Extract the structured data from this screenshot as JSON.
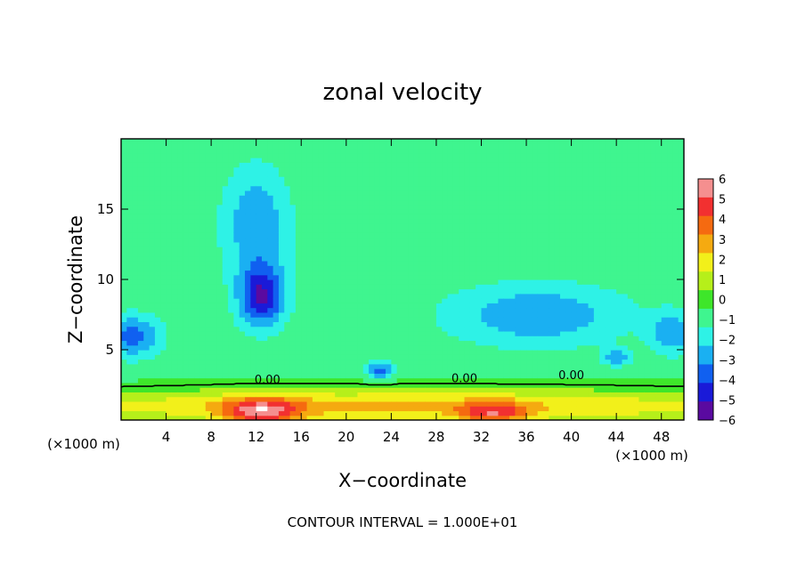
{
  "chart_data": {
    "type": "heatmap",
    "title": "zonal velocity",
    "xlabel": "X−coordinate",
    "ylabel": "Z−coordinate",
    "x_unit_left": "(×1000 m)",
    "x_unit_right": "(×1000 m)",
    "footer": "CONTOUR INTERVAL = 1.000E+01",
    "xlim": [
      0,
      50
    ],
    "ylim": [
      0,
      20
    ],
    "x_ticks": [
      4,
      8,
      12,
      16,
      20,
      24,
      28,
      32,
      36,
      40,
      44,
      48
    ],
    "x_tick_labels": [
      "4",
      "8",
      "12",
      "16",
      "20",
      "24",
      "28",
      "32",
      "36",
      "40",
      "44",
      "48"
    ],
    "y_ticks": [
      5,
      10,
      15
    ],
    "y_tick_labels": [
      "5",
      "10",
      "15"
    ],
    "colorbar": {
      "levels": [
        6,
        5,
        4,
        3,
        2,
        1,
        0,
        -1,
        -2,
        -3,
        -4,
        -5,
        -6
      ],
      "labels": [
        "6",
        "5",
        "4",
        "3",
        "2",
        "1",
        "0",
        "−1",
        "−2",
        "−3",
        "−4",
        "−5",
        "−6"
      ],
      "colors": [
        "#f58f8f",
        "#f23030",
        "#f56a10",
        "#f5aa10",
        "#f2f01a",
        "#b6ef1a",
        "#3ee62a",
        "#3ff58f",
        "#2ef2e6",
        "#1ab0f2",
        "#1060f0",
        "#1a1ad8",
        "#5a0aa0"
      ]
    },
    "contour_labels": [
      "0.00",
      "0.00",
      "0.00"
    ],
    "background_value": -0.8,
    "features": [
      {
        "name": "upper-jet-core",
        "x": 12,
        "z": 14,
        "sx": 3,
        "sz": 4,
        "value": -2.6
      },
      {
        "name": "strong-negative-core",
        "x": 12.5,
        "z": 8.8,
        "sx": 2.1,
        "sz": 2.2,
        "value": -4.5
      },
      {
        "name": "right-negative-region",
        "x": 37,
        "z": 7.5,
        "sx": 8,
        "sz": 2.2,
        "value": -2.6
      },
      {
        "name": "left-negative-region",
        "x": 1,
        "z": 6,
        "sx": 2.5,
        "sz": 1.5,
        "value": -3.2
      },
      {
        "name": "right-edge-negative",
        "x": 49,
        "z": 6.2,
        "sx": 2,
        "sz": 1.5,
        "value": -2.5
      },
      {
        "name": "small-negative-23",
        "x": 23,
        "z": 3.6,
        "sx": 1.2,
        "sz": 0.7,
        "value": -3.0
      },
      {
        "name": "small-negative-44",
        "x": 44,
        "z": 4.5,
        "sx": 1.2,
        "sz": 0.6,
        "value": -2.5
      },
      {
        "name": "low-positive-layer",
        "x": 25,
        "z": 1.0,
        "sx": 40,
        "sz": 1.3,
        "value": 3.5
      },
      {
        "name": "surface-max-12",
        "x": 12.5,
        "z": 0.6,
        "sx": 3.5,
        "sz": 1.0,
        "value": 4.5
      },
      {
        "name": "surface-max-32",
        "x": 33,
        "z": 0.5,
        "sx": 3,
        "sz": 0.8,
        "value": 3.5
      }
    ]
  }
}
